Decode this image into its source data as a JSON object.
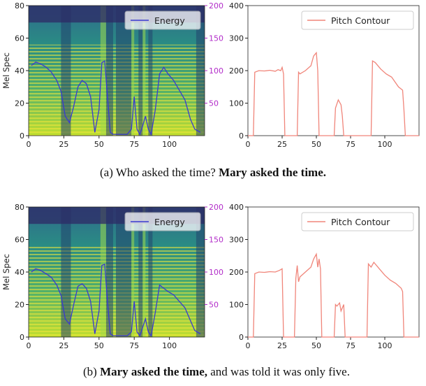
{
  "chart_data": [
    {
      "type": "line",
      "panel": "(a)",
      "left_plot": {
        "ylabel": "Mel Spec",
        "ylim": [
          0,
          80
        ],
        "xlim": [
          0,
          125
        ],
        "xticks": [
          0,
          25,
          50,
          75,
          100
        ],
        "yticks": [
          0,
          20,
          40,
          60,
          80
        ],
        "right_ylim": [
          0,
          200
        ],
        "right_yticks": [
          50,
          100,
          150,
          200
        ],
        "right_axis_color": "#b22cc9",
        "background": "mel spectrogram (viridis)",
        "legend": "Energy",
        "legend_position": "top-right",
        "series": [
          {
            "name": "Energy",
            "color": "#3a3ad0",
            "x": [
              2,
              5,
              8,
              12,
              16,
              20,
              23,
              26,
              29,
              32,
              35,
              38,
              41,
              44,
              47,
              50,
              52,
              54,
              56,
              58,
              60,
              63,
              66,
              70,
              73,
              75,
              77,
              79,
              81,
              83,
              85,
              87,
              90,
              93,
              96,
              99,
              103,
              107,
              111,
              115,
              118,
              122
            ],
            "y": [
              108,
              113,
              111,
              106,
              98,
              85,
              68,
              30,
              20,
              45,
              75,
              85,
              80,
              60,
              5,
              40,
              112,
              115,
              60,
              5,
              2,
              2,
              2,
              2,
              10,
              60,
              10,
              2,
              15,
              30,
              10,
              2,
              40,
              95,
              105,
              95,
              85,
              70,
              55,
              25,
              10,
              5
            ]
          }
        ]
      },
      "right_plot": {
        "ylim": [
          0,
          400
        ],
        "xlim": [
          0,
          125
        ],
        "xticks": [
          0,
          25,
          50,
          75,
          100
        ],
        "yticks": [
          0,
          100,
          200,
          300,
          400
        ],
        "legend": "Pitch Contour",
        "legend_position": "top-right",
        "series": [
          {
            "name": "Pitch Contour",
            "color": "#f0857a",
            "x": [
              0,
              4,
              5,
              8,
              12,
              16,
              20,
              22,
              24,
              25,
              26,
              27,
              36,
              37,
              38,
              42,
              46,
              48,
              50,
              51,
              52,
              63,
              64,
              66,
              68,
              69,
              70,
              90,
              91,
              93,
              97,
              101,
              105,
              110,
              113,
              114,
              115,
              125
            ],
            "y": [
              0,
              0,
              195,
              200,
              199,
              201,
              198,
              203,
              200,
              210,
              190,
              0,
              0,
              195,
              190,
              200,
              215,
              245,
              255,
              200,
              0,
              0,
              85,
              110,
              95,
              60,
              0,
              0,
              230,
              225,
              205,
              190,
              180,
              150,
              140,
              80,
              0,
              0
            ]
          }
        ]
      },
      "caption": {
        "label": "(a)",
        "regular": "Who asked the time?",
        "bold": "Mary asked the time."
      }
    },
    {
      "type": "line",
      "panel": "(b)",
      "left_plot": {
        "ylabel": "Mel Spec",
        "ylim": [
          0,
          80
        ],
        "xlim": [
          0,
          125
        ],
        "xticks": [
          0,
          25,
          50,
          75,
          100
        ],
        "yticks": [
          0,
          20,
          40,
          60,
          80
        ],
        "right_ylim": [
          0,
          200
        ],
        "right_yticks": [
          50,
          100,
          150,
          200
        ],
        "right_axis_color": "#b22cc9",
        "background": "mel spectrogram (viridis)",
        "legend": "Energy",
        "legend_position": "top-right",
        "series": [
          {
            "name": "Energy",
            "color": "#3a3ad0",
            "x": [
              2,
              5,
              8,
              12,
              16,
              20,
              23,
              26,
              29,
              32,
              35,
              38,
              41,
              44,
              47,
              50,
              52,
              54,
              56,
              58,
              60,
              63,
              66,
              70,
              73,
              75,
              77,
              79,
              81,
              83,
              85,
              87,
              90,
              93,
              96,
              99,
              103,
              107,
              111,
              115,
              118,
              122
            ],
            "y": [
              100,
              105,
              103,
              98,
              92,
              80,
              64,
              28,
              20,
              50,
              78,
              82,
              75,
              55,
              5,
              40,
              110,
              112,
              55,
              5,
              2,
              2,
              2,
              2,
              8,
              55,
              8,
              2,
              15,
              28,
              8,
              2,
              38,
              80,
              75,
              70,
              65,
              55,
              45,
              25,
              10,
              5
            ]
          }
        ]
      },
      "right_plot": {
        "ylim": [
          0,
          400
        ],
        "xlim": [
          0,
          125
        ],
        "xticks": [
          0,
          25,
          50,
          75,
          100
        ],
        "yticks": [
          0,
          100,
          200,
          300,
          400
        ],
        "legend": "Pitch Contour",
        "legend_position": "top-right",
        "series": [
          {
            "name": "Pitch Contour",
            "color": "#f0857a",
            "x": [
              0,
              4,
              5,
              8,
              12,
              16,
              20,
              23,
              25,
              26,
              34,
              35,
              36,
              37,
              38,
              42,
              46,
              48,
              50,
              51,
              52,
              53,
              54,
              63,
              64,
              65,
              67,
              68,
              70,
              71,
              87,
              88,
              90,
              92,
              96,
              100,
              104,
              108,
              112,
              113,
              114,
              125
            ],
            "y": [
              0,
              0,
              195,
              200,
              199,
              201,
              200,
              205,
              210,
              0,
              0,
              180,
              220,
              170,
              185,
              200,
              215,
              240,
              255,
              215,
              240,
              210,
              0,
              0,
              100,
              95,
              105,
              80,
              100,
              0,
              0,
              225,
              215,
              230,
              210,
              190,
              175,
              165,
              150,
              140,
              0,
              0
            ]
          }
        ]
      },
      "caption": {
        "label": "(b)",
        "bold": "Mary asked the time,",
        "regular": "and was told it was only five."
      }
    }
  ]
}
